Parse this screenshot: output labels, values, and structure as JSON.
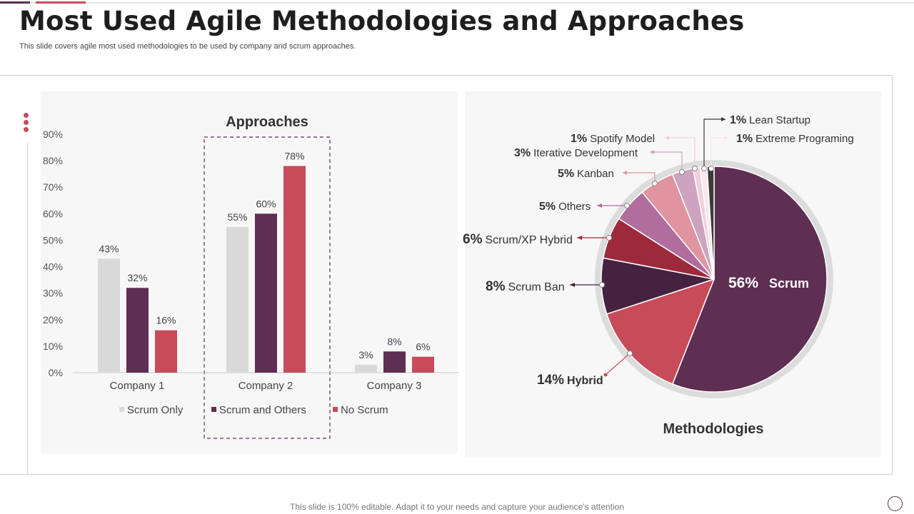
{
  "page": {
    "title": "Most Used Agile Methodologies and Approaches",
    "subtitle": "This slide covers agile most used methodologies to be used by company and scrum approaches.",
    "footer": "This slide is 100% editable. Adapt it to your needs and capture your audience's attention"
  },
  "colors": {
    "scrum_only": "#d9d9d9",
    "scrum_and_others": "#5e2f52",
    "no_scrum": "#c84b5a",
    "accent": "#c84b5a"
  },
  "chart_data": [
    {
      "type": "bar",
      "title": "Approaches",
      "categories": [
        "Company 1",
        "Company 2",
        "Company 3"
      ],
      "series": [
        {
          "name": "Scrum Only",
          "values": [
            43,
            55,
            3
          ],
          "labels": [
            "43%",
            "55%",
            "3%"
          ]
        },
        {
          "name": "Scrum and Others",
          "values": [
            32,
            60,
            8
          ],
          "labels": [
            "32%",
            "60%",
            "8%"
          ]
        },
        {
          "name": "No Scrum",
          "values": [
            16,
            78,
            6
          ],
          "labels": [
            "16%",
            "78%",
            "6%"
          ]
        }
      ],
      "ylim": [
        0,
        90
      ],
      "yticks": [
        "0%",
        "10%",
        "20%",
        "30%",
        "40%",
        "50%",
        "60%",
        "70%",
        "80%",
        "90%"
      ],
      "highlight_category": "Company 2",
      "legend": "bottom",
      "xlabel": "",
      "ylabel": ""
    },
    {
      "type": "pie",
      "title": "Methodologies",
      "slices": [
        {
          "label": "Scrum",
          "value": 56,
          "pct": "56%",
          "color": "#5e2f52"
        },
        {
          "label": "Hybrid",
          "value": 14,
          "pct": "14%",
          "color": "#c84b5a"
        },
        {
          "label": "Scrum Ban",
          "value": 8,
          "pct": "8%",
          "color": "#45223f"
        },
        {
          "label": "Scrum/XP Hybrid",
          "value": 6,
          "pct": "6%",
          "color": "#9c2a3b"
        },
        {
          "label": "Others",
          "value": 5,
          "pct": "5%",
          "color": "#b06d9d"
        },
        {
          "label": "Kanban",
          "value": 5,
          "pct": "5%",
          "color": "#e0949f"
        },
        {
          "label": "Iterative  Development",
          "value": 3,
          "pct": "3%",
          "color": "#cda3c0"
        },
        {
          "label": "Spotify Model",
          "value": 1,
          "pct": "1%",
          "color": "#f1cfd6"
        },
        {
          "label": "Extreme Programing",
          "value": 1,
          "pct": "1%",
          "color": "#fde6ea"
        },
        {
          "label": "Lean Startup",
          "value": 1,
          "pct": "1%",
          "color": "#3a3a3a"
        }
      ]
    }
  ]
}
